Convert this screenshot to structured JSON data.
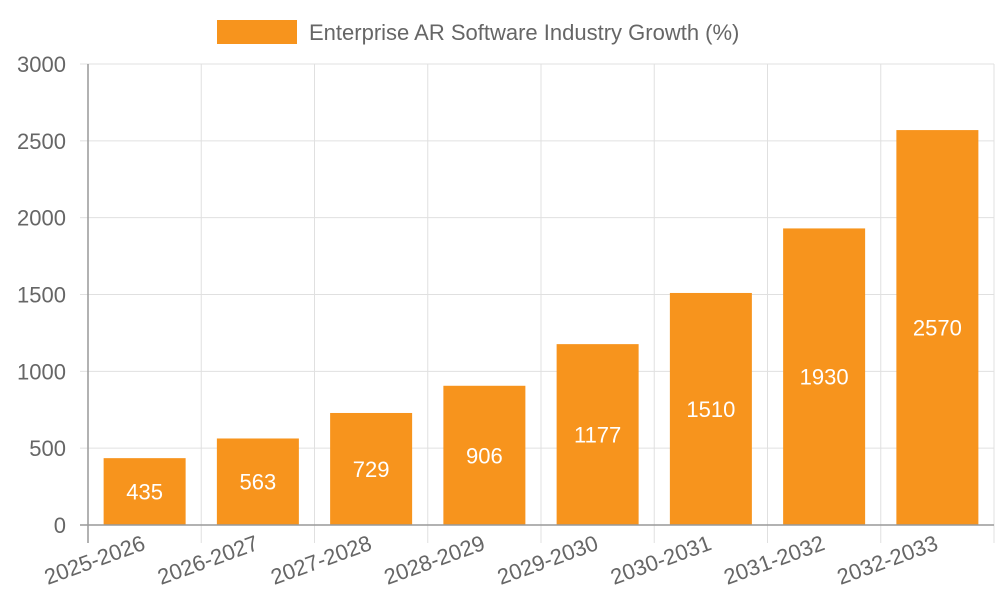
{
  "chart_data": {
    "type": "bar",
    "categories": [
      "2025-2026",
      "2026-2027",
      "2027-2028",
      "2028-2029",
      "2029-2030",
      "2030-2031",
      "2031-2032",
      "2032-2033"
    ],
    "series": [
      {
        "name": "Enterprise AR Software Industry Growth (%)",
        "values": [
          435,
          563,
          729,
          906,
          1177,
          1510,
          1930,
          2570
        ]
      }
    ],
    "data_labels": [
      "435",
      "563",
      "729",
      "906",
      "1177",
      "1510",
      "1930",
      "2570"
    ],
    "y_ticks": [
      "0",
      "500",
      "1000",
      "1500",
      "2000",
      "2500",
      "3000"
    ],
    "ylim": [
      0,
      3000
    ],
    "grid": true,
    "legend_position": "top",
    "colors": {
      "bar": "#f7941d",
      "grid": "#e0e0e0",
      "axis": "#999999",
      "text": "#666666",
      "label": "#ffffff"
    }
  }
}
